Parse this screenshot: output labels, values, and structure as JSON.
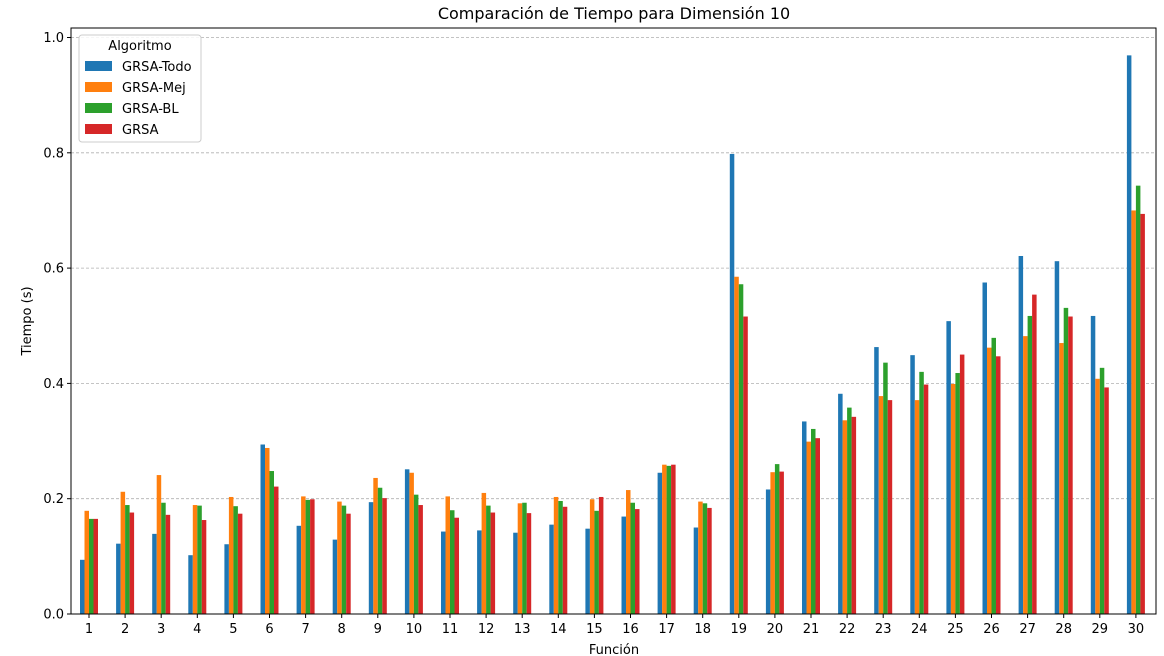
{
  "chart_data": {
    "type": "bar",
    "title": "Comparación de Tiempo para Dimensión 10",
    "xlabel": "Función",
    "ylabel": "Tiempo (s)",
    "ylim": [
      0,
      1.0
    ],
    "yticks": [
      "0.0",
      "0.2",
      "0.4",
      "0.6",
      "0.8",
      "1.0"
    ],
    "grid": "y-dashed",
    "legend": {
      "title": "Algoritmo",
      "placement": "top-left"
    },
    "categories": [
      "1",
      "2",
      "3",
      "4",
      "5",
      "6",
      "7",
      "8",
      "9",
      "10",
      "11",
      "12",
      "13",
      "14",
      "15",
      "16",
      "17",
      "18",
      "19",
      "20",
      "21",
      "22",
      "23",
      "24",
      "25",
      "26",
      "27",
      "28",
      "29",
      "30"
    ],
    "series": [
      {
        "name": "GRSA-Todo",
        "color": "#1f77b4",
        "values": [
          0.094,
          0.122,
          0.139,
          0.102,
          0.121,
          0.294,
          0.153,
          0.129,
          0.194,
          0.251,
          0.143,
          0.145,
          0.141,
          0.155,
          0.148,
          0.169,
          0.245,
          0.15,
          0.798,
          0.216,
          0.334,
          0.382,
          0.463,
          0.449,
          0.508,
          0.575,
          0.621,
          0.612,
          0.517,
          0.969
        ]
      },
      {
        "name": "GRSA-Mej",
        "color": "#ff7f0e",
        "values": [
          0.179,
          0.212,
          0.241,
          0.189,
          0.203,
          0.288,
          0.204,
          0.195,
          0.236,
          0.245,
          0.204,
          0.21,
          0.192,
          0.203,
          0.199,
          0.215,
          0.259,
          0.195,
          0.585,
          0.246,
          0.299,
          0.336,
          0.378,
          0.371,
          0.399,
          0.462,
          0.482,
          0.47,
          0.408,
          0.7
        ]
      },
      {
        "name": "GRSA-BL",
        "color": "#2ca02c",
        "values": [
          0.165,
          0.189,
          0.193,
          0.188,
          0.187,
          0.248,
          0.198,
          0.188,
          0.219,
          0.207,
          0.18,
          0.188,
          0.193,
          0.196,
          0.179,
          0.193,
          0.257,
          0.192,
          0.572,
          0.26,
          0.321,
          0.358,
          0.436,
          0.42,
          0.418,
          0.479,
          0.517,
          0.531,
          0.427,
          0.743
        ]
      },
      {
        "name": "GRSA",
        "color": "#d62728",
        "values": [
          0.165,
          0.176,
          0.172,
          0.163,
          0.174,
          0.221,
          0.199,
          0.174,
          0.201,
          0.189,
          0.167,
          0.176,
          0.175,
          0.186,
          0.203,
          0.182,
          0.259,
          0.184,
          0.516,
          0.247,
          0.305,
          0.342,
          0.371,
          0.398,
          0.45,
          0.447,
          0.554,
          0.516,
          0.393,
          0.694
        ]
      }
    ]
  }
}
